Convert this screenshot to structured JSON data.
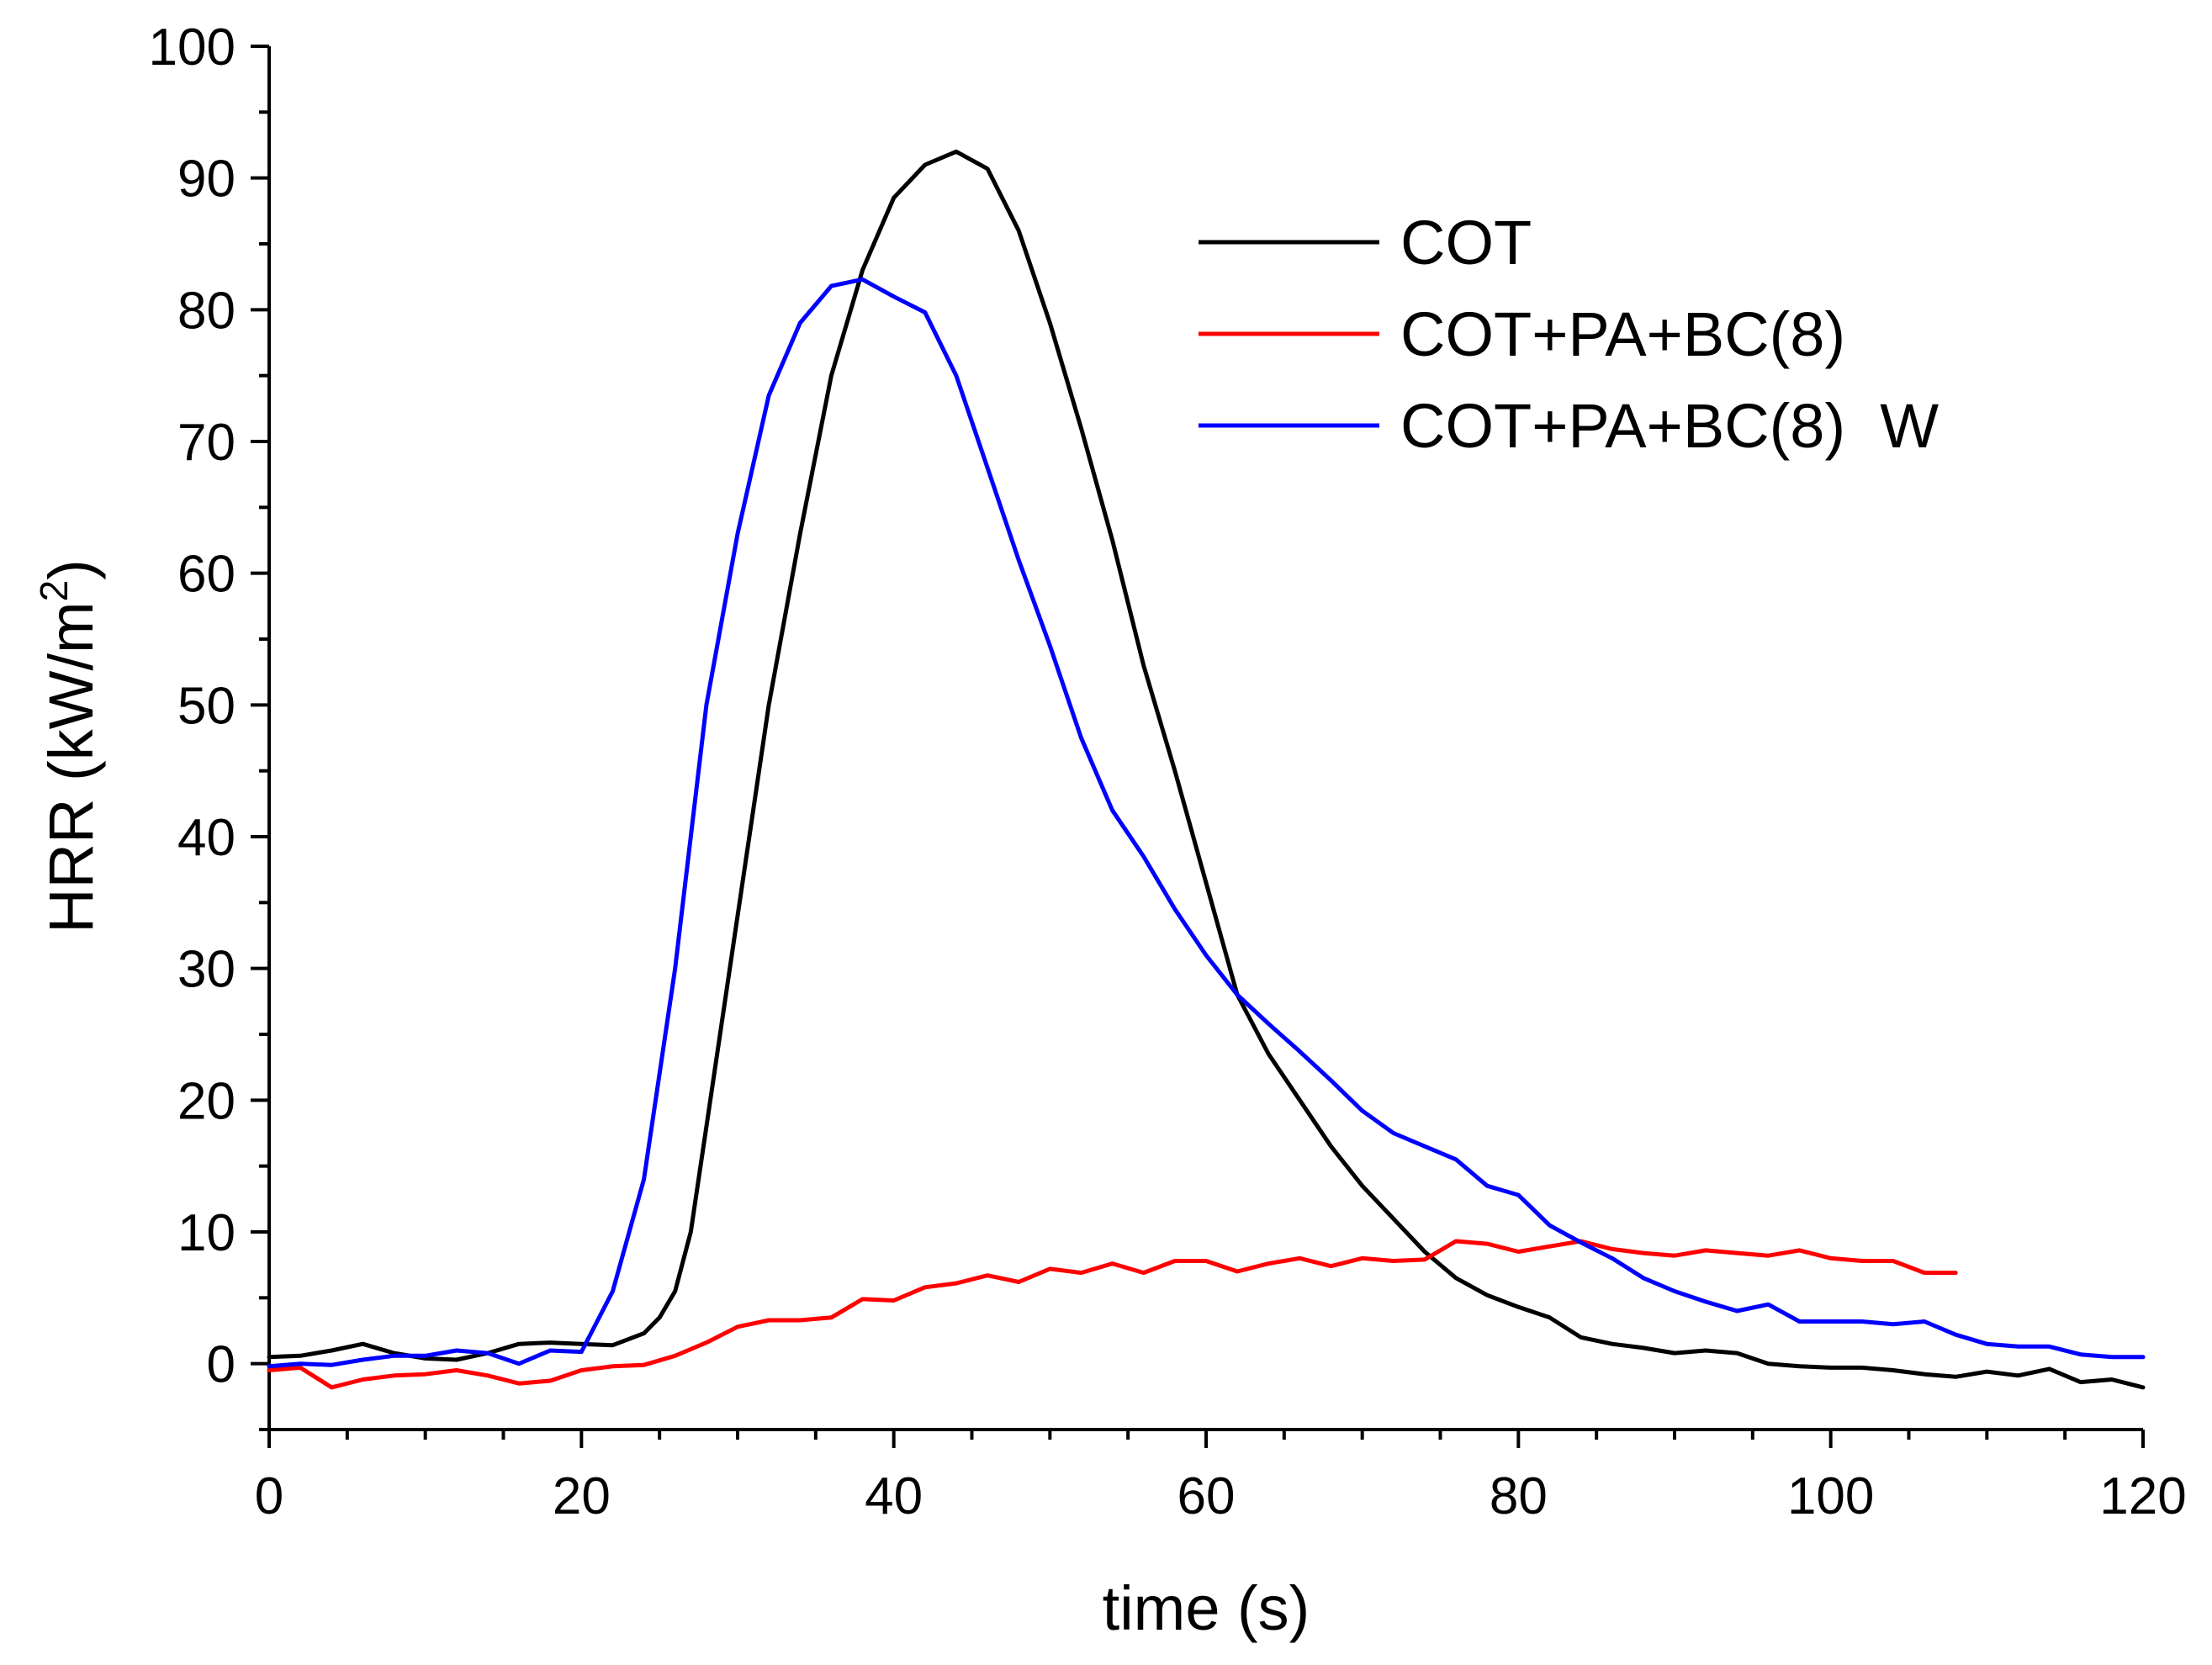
{
  "chart_data": {
    "type": "line",
    "title": "",
    "xlabel": "time (s)",
    "ylabel": {
      "text": "HRR (kW/m",
      "superscript": "2",
      "close": ")"
    },
    "xlim": [
      0,
      120
    ],
    "ylim": [
      -5,
      100
    ],
    "xticks": [
      0,
      20,
      40,
      60,
      80,
      100,
      120
    ],
    "yticks": [
      0,
      10,
      20,
      30,
      40,
      50,
      60,
      70,
      80,
      90,
      100
    ],
    "x_minor_step": 5,
    "y_minor_step": 5,
    "grid": false,
    "legend_position": "top-right",
    "series": [
      {
        "name": "COT",
        "color": "#000000",
        "x": [
          0,
          2,
          4,
          6,
          8,
          10,
          12,
          14,
          16,
          18,
          20,
          22,
          24,
          25,
          26,
          27,
          28,
          30,
          32,
          34,
          36,
          38,
          40,
          42,
          44,
          46,
          48,
          50,
          52,
          54,
          56,
          58,
          60,
          62,
          64,
          66,
          68,
          70,
          72,
          74,
          76,
          78,
          80,
          82,
          84,
          86,
          88,
          90,
          92,
          94,
          96,
          98,
          100,
          102,
          104,
          106,
          108,
          110,
          112,
          114,
          116,
          118,
          120
        ],
        "values": [
          0.5,
          0.6,
          1.0,
          1.5,
          0.8,
          0.4,
          0.3,
          0.8,
          1.5,
          1.6,
          1.5,
          1.4,
          2.3,
          3.5,
          5.5,
          10,
          18,
          34,
          50,
          63,
          75,
          83,
          88.5,
          91,
          92,
          90.7,
          86,
          79,
          71,
          62.5,
          53,
          45,
          36.5,
          28,
          23.5,
          20,
          16.5,
          13.5,
          11,
          8.5,
          6.5,
          5.2,
          4.3,
          3.5,
          2.0,
          1.5,
          1.2,
          0.8,
          1.0,
          0.8,
          0.0,
          -0.2,
          -0.3,
          -0.3,
          -0.5,
          -0.8,
          -1.0,
          -0.6,
          -0.9,
          -0.4,
          -1.4,
          -1.2,
          -1.8
        ]
      },
      {
        "name": "COT+PA+BC(8)",
        "color": "#ff0000",
        "x": [
          0,
          2,
          4,
          6,
          8,
          10,
          12,
          14,
          16,
          18,
          20,
          22,
          24,
          26,
          28,
          30,
          32,
          34,
          36,
          38,
          40,
          42,
          44,
          46,
          48,
          50,
          52,
          54,
          56,
          58,
          60,
          62,
          64,
          66,
          68,
          70,
          72,
          74,
          76,
          78,
          80,
          82,
          84,
          86,
          88,
          90,
          92,
          94,
          96,
          98,
          100,
          102,
          104,
          106,
          108
        ],
        "values": [
          -0.5,
          -0.3,
          -1.8,
          -1.2,
          -0.9,
          -0.8,
          -0.5,
          -0.9,
          -1.5,
          -1.3,
          -0.5,
          -0.2,
          -0.1,
          0.6,
          1.6,
          2.8,
          3.3,
          3.3,
          3.5,
          4.9,
          4.8,
          5.8,
          6.1,
          6.7,
          6.2,
          7.2,
          6.9,
          7.6,
          6.9,
          7.8,
          7.8,
          7.0,
          7.6,
          8.0,
          7.4,
          8.0,
          7.8,
          7.9,
          9.3,
          9.1,
          8.5,
          8.9,
          9.3,
          8.7,
          8.4,
          8.2,
          8.6,
          8.4,
          8.2,
          8.6,
          8.0,
          7.8,
          7.8,
          6.9,
          6.9
        ]
      },
      {
        "name": "COT+PA+BC(8)  W",
        "color": "#0000ff",
        "x": [
          0,
          2,
          4,
          6,
          8,
          10,
          12,
          14,
          16,
          18,
          20,
          22,
          24,
          26,
          28,
          30,
          32,
          34,
          36,
          38,
          40,
          42,
          44,
          46,
          48,
          50,
          52,
          54,
          56,
          58,
          60,
          62,
          64,
          66,
          68,
          70,
          72,
          74,
          76,
          78,
          80,
          82,
          84,
          86,
          88,
          90,
          92,
          94,
          96,
          98,
          100,
          102,
          104,
          106,
          108,
          110,
          112,
          114,
          116,
          118,
          120
        ],
        "values": [
          -0.2,
          0.0,
          -0.1,
          0.3,
          0.6,
          0.6,
          1.0,
          0.8,
          0.0,
          1.0,
          0.9,
          5.5,
          14,
          30,
          50,
          63,
          73.5,
          79,
          81.8,
          82.3,
          81,
          79.8,
          75,
          68,
          61,
          54.5,
          47.5,
          42,
          38.5,
          34.5,
          31,
          28,
          25.8,
          23.7,
          21.5,
          19.2,
          17.5,
          16.5,
          15.5,
          13.5,
          12.8,
          10.5,
          9.2,
          8,
          6.5,
          5.5,
          4.7,
          4.0,
          4.5,
          3.2,
          3.2,
          3.2,
          3.0,
          3.2,
          2.2,
          1.5,
          1.3,
          1.3,
          0.7,
          0.5,
          0.5
        ]
      }
    ]
  }
}
